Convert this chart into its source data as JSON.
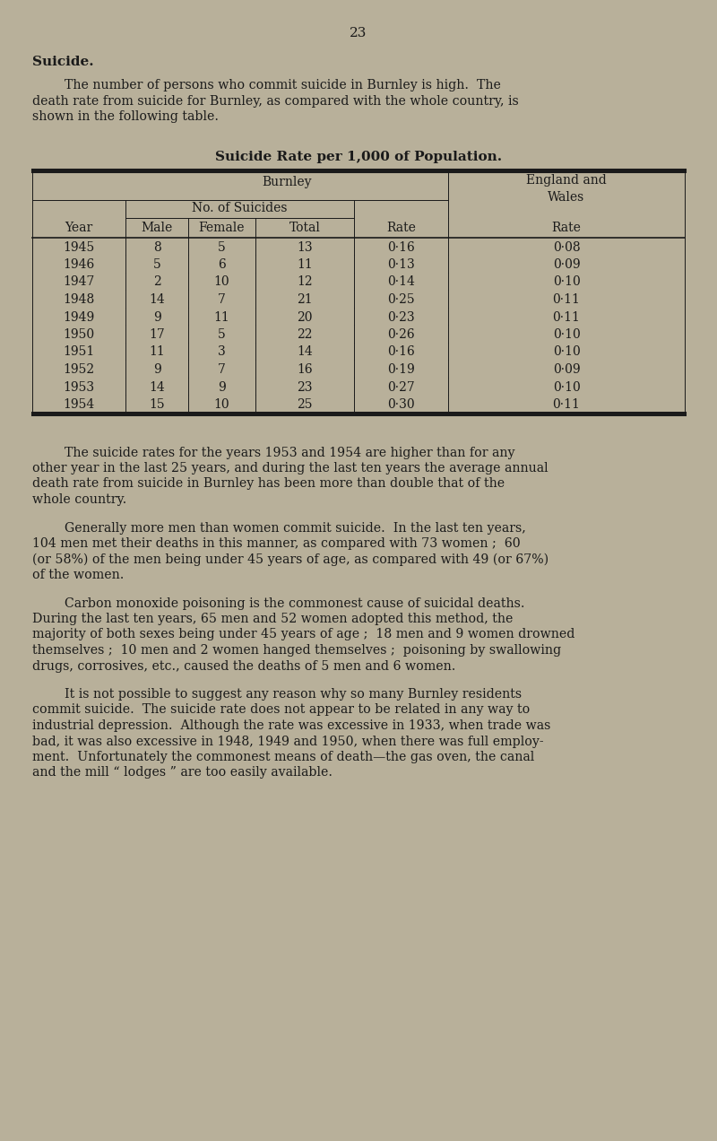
{
  "page_number": "23",
  "bg_color": "#b8b09a",
  "text_color": "#1a1a1a",
  "section_title": "Suicide.",
  "intro_text_indent": "        The number of persons who commit suicide in Burnley is high.  The",
  "intro_text_lines": [
    "        The number of persons who commit suicide in Burnley is high.  The",
    "death rate from suicide for Burnley, as compared with the whole country, is",
    "shown in the following table."
  ],
  "table_title": "Suicide Rate per 1,000 of Population.",
  "col_header_1": "Burnley",
  "col_header_2": "England and\nWales",
  "sub_header_1": "No. of Suicides",
  "col_labels": [
    "Year",
    "Male",
    "Female",
    "Total",
    "Rate",
    "Rate"
  ],
  "table_data": [
    [
      "1945",
      "8",
      "5",
      "13",
      "0·16",
      "0·08"
    ],
    [
      "1946",
      "5",
      "6",
      "11",
      "0·13",
      "0·09"
    ],
    [
      "1947",
      "2",
      "10",
      "12",
      "0·14",
      "0·10"
    ],
    [
      "1948",
      "14",
      "7",
      "21",
      "0·25",
      "0·11"
    ],
    [
      "1949",
      "9",
      "11",
      "20",
      "0·23",
      "0·11"
    ],
    [
      "1950",
      "17",
      "5",
      "22",
      "0·26",
      "0·10"
    ],
    [
      "1951",
      "11",
      "3",
      "14",
      "0·16",
      "0·10"
    ],
    [
      "1952",
      "9",
      "7",
      "16",
      "0·19",
      "0·09"
    ],
    [
      "1953",
      "14",
      "9",
      "23",
      "0·27",
      "0·10"
    ],
    [
      "1954",
      "15",
      "10",
      "25",
      "0·30",
      "0·11"
    ]
  ],
  "para1_lines": [
    "        The suicide rates for the years 1953 and 1954 are higher than for any",
    "other year in the last 25 years, and during the last ten years the average annual",
    "death rate from suicide in Burnley has been more than double that of the",
    "whole country."
  ],
  "para2_lines": [
    "        Generally more men than women commit suicide.  In the last ten years,",
    "104 men met their deaths in this manner, as compared with 73 women ;  60",
    "(or 58%) of the men being under 45 years of age, as compared with 49 (or 67%)",
    "of the women."
  ],
  "para3_lines": [
    "        Carbon monoxide poisoning is the commonest cause of suicidal deaths.",
    "During the last ten years, 65 men and 52 women adopted this method, the",
    "majority of both sexes being under 45 years of age ;  18 men and 9 women drowned",
    "themselves ;  10 men and 2 women hanged themselves ;  poisoning by swallowing",
    "drugs, corrosives, etc., caused the deaths of 5 men and 6 women."
  ],
  "para4_lines": [
    "        It is not possible to suggest any reason why so many Burnley residents",
    "commit suicide.  The suicide rate does not appear to be related in any way to",
    "industrial depression.  Although the rate was excessive in 1933, when trade was",
    "bad, it was also excessive in 1948, 1949 and 1950, when there was full employ-",
    "ment.  Unfortunately the commonest means of death—the gas oven, the canal",
    "and the mill “ lodges ” are too easily available."
  ]
}
